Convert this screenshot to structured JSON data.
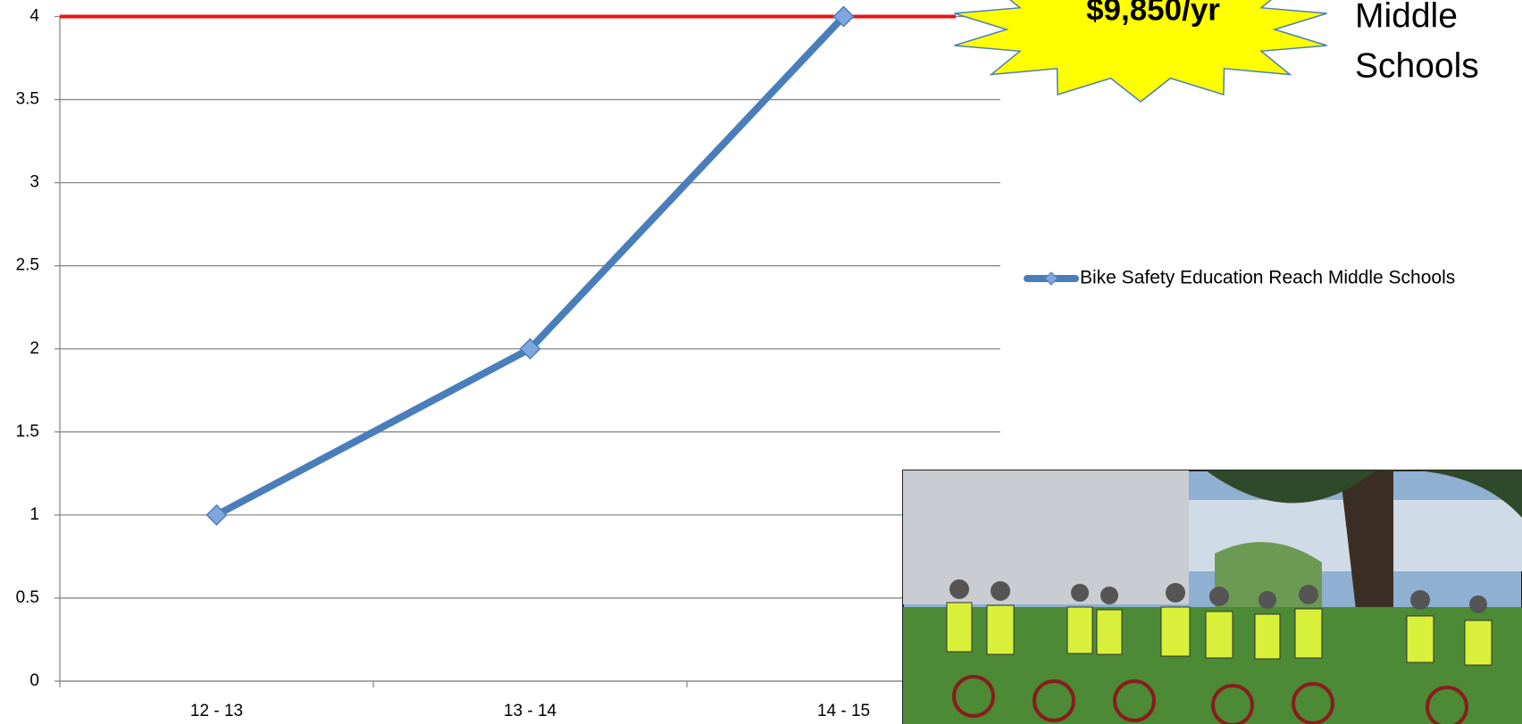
{
  "chart_data": {
    "type": "line",
    "categories": [
      "12 - 13",
      "13 - 14",
      "14 - 15"
    ],
    "series": [
      {
        "name": "Bike Safety Education Reach Middle Schools",
        "color": "#4a7ebb",
        "values": [
          1,
          2,
          4
        ]
      }
    ],
    "ylim": [
      0,
      4
    ],
    "yticks": [
      0,
      0.5,
      1,
      1.5,
      2,
      2.5,
      3,
      3.5,
      4
    ],
    "grid": true,
    "reference_line": {
      "value": 4,
      "color": "#ee1111"
    },
    "legend": "right",
    "callout": "$9,850/yr",
    "heading_lines": [
      "Middle",
      "Schools"
    ]
  }
}
